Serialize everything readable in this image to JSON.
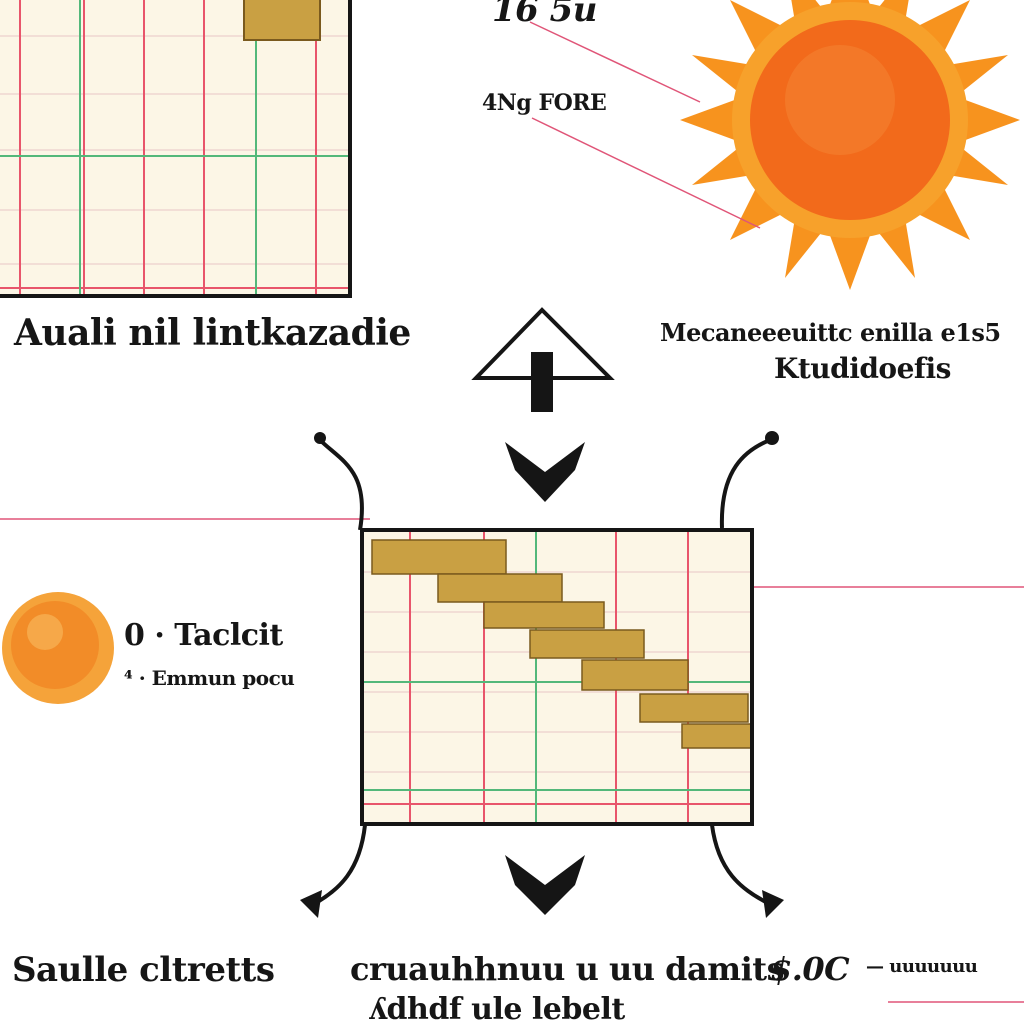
{
  "labels": {
    "top_left_caption": "Auali nil lintkazadie",
    "top_right_small": "16 5u",
    "sun_label": "4Ng FORE",
    "right_caption_line1": "Mecaneeeuittc enilla e1s5",
    "right_caption_line2": "Ktudidoefis",
    "legend_item1": "0 · Taclcit",
    "legend_item2": "⁴ · Emmun pocu",
    "bottom_left": "Saulle cltretts",
    "bottom_center_line1": "cruauhhnuu u uu damits",
    "bottom_center_line2": "ʎdhdf ule lebelt",
    "bottom_right_value": "$.0C",
    "bottom_right_unit": "— uuuuuuu"
  },
  "colors": {
    "sun_orange": "#f7931e",
    "sun_core": "#f26a1b",
    "grid_red": "#e8556b",
    "grid_green": "#53b87a",
    "bar_gold": "#c9a043",
    "line_pink": "#e05578",
    "ink": "#151515"
  }
}
